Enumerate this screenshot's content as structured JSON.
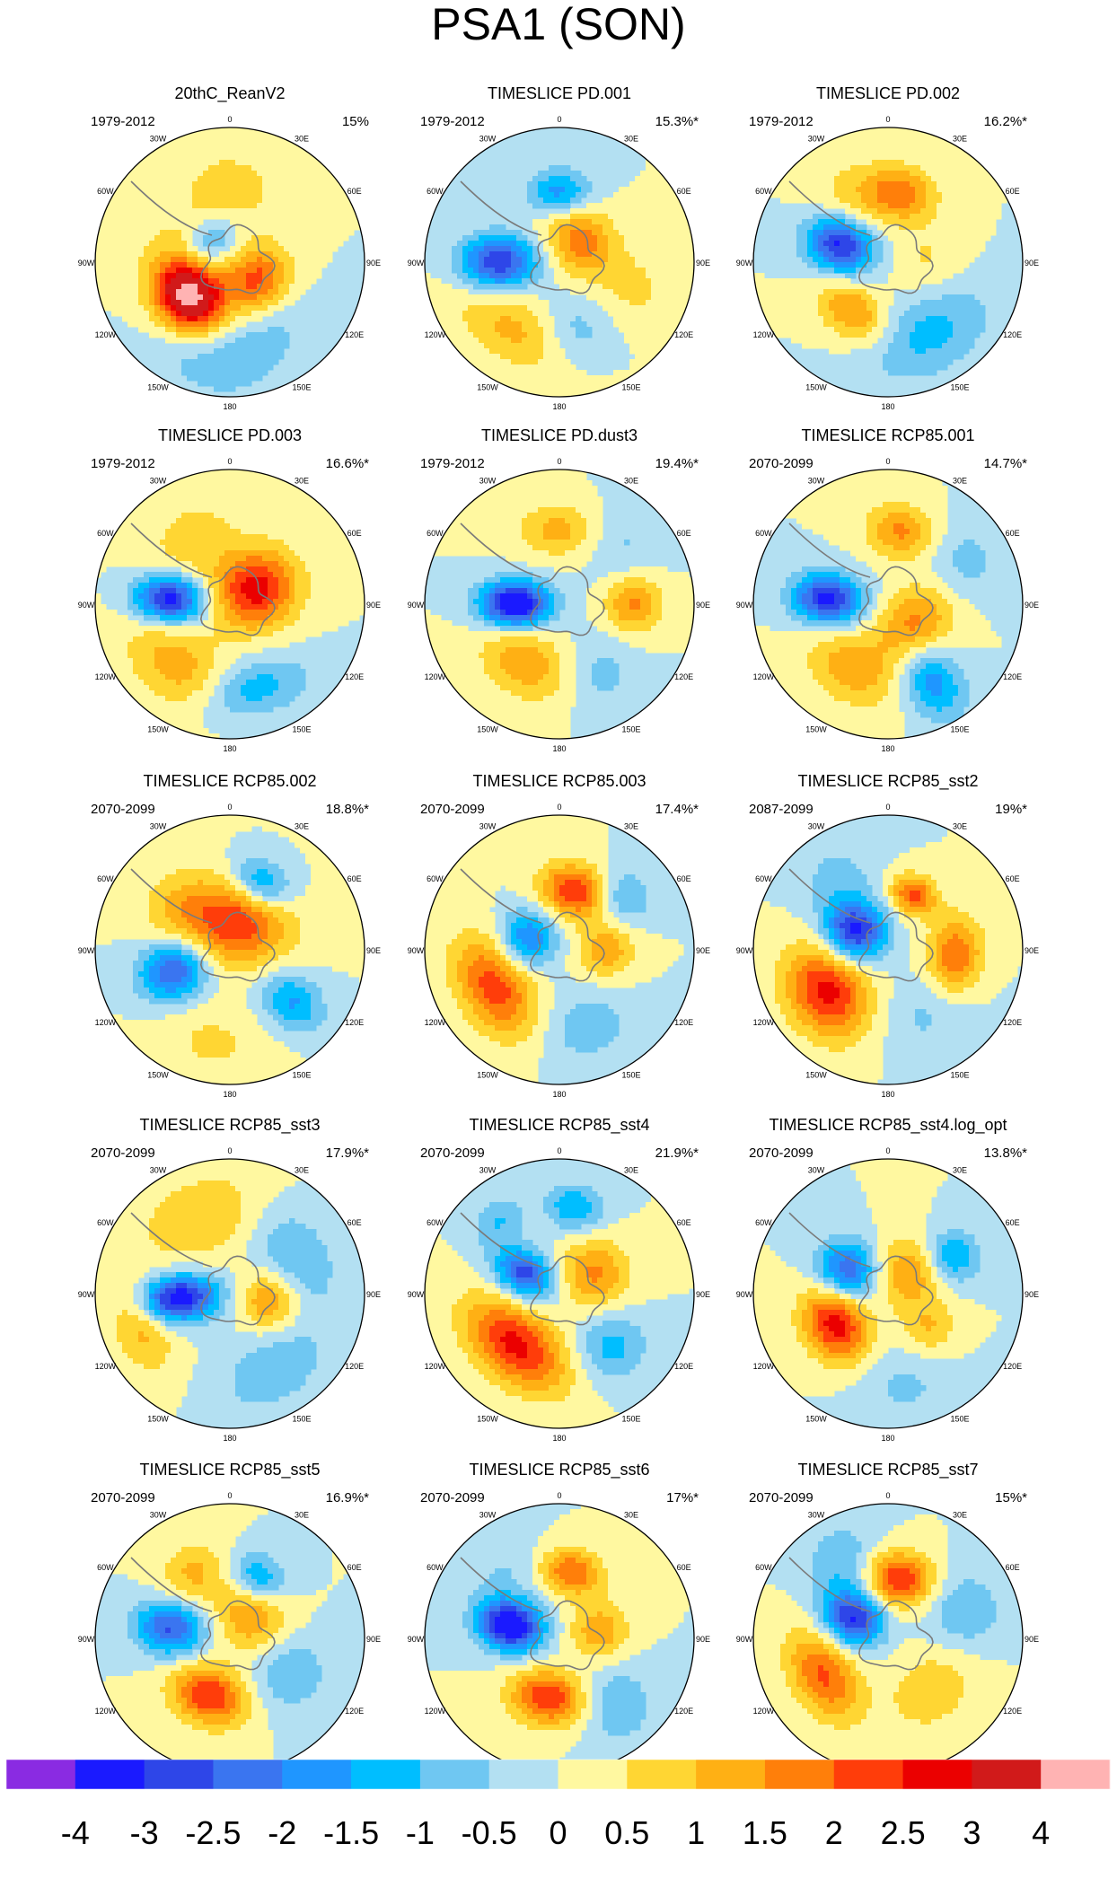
{
  "figure": {
    "title": "PSA1 (SON)",
    "background": "#ffffff"
  },
  "longitude_labels": [
    "0",
    "30E",
    "60E",
    "90E",
    "120E",
    "150E",
    "180",
    "150W",
    "120W",
    "90W",
    "60W",
    "30W"
  ],
  "panels": [
    {
      "title": "20thC_ReanV2",
      "period": "1979-2012",
      "variance": "15%",
      "pattern": [
        {
          "lon": -130,
          "r": 0.4,
          "a": 3.5,
          "sx": 0.18,
          "sy": 0.15
        },
        {
          "lon": -115,
          "r": 0.3,
          "a": 1.2,
          "sx": 0.3,
          "sy": 0.25
        },
        {
          "lon": 120,
          "r": 0.25,
          "a": 2.0,
          "sx": 0.18,
          "sy": 0.15
        },
        {
          "lon": -45,
          "r": 0.2,
          "a": -1.5,
          "sx": 0.15,
          "sy": 0.12
        },
        {
          "lon": 0,
          "r": 0.55,
          "a": 0.8,
          "sx": 0.25,
          "sy": 0.2
        },
        {
          "lon": -165,
          "r": 0.78,
          "a": -0.6,
          "sx": 0.35,
          "sy": 0.2
        },
        {
          "lon": 160,
          "r": 0.6,
          "a": -0.7,
          "sx": 0.3,
          "sy": 0.2
        }
      ]
    },
    {
      "title": "TIMESLICE PD.001",
      "period": "1979-2012",
      "variance": "15.3%*",
      "pattern": [
        {
          "lon": -90,
          "r": 0.45,
          "a": -3.0,
          "sx": 0.14,
          "sy": 0.2
        },
        {
          "lon": 0,
          "r": 0.52,
          "a": -1.8,
          "sx": 0.16,
          "sy": 0.12
        },
        {
          "lon": 45,
          "r": 0.22,
          "a": 1.8,
          "sx": 0.2,
          "sy": 0.17
        },
        {
          "lon": -150,
          "r": 0.6,
          "a": 1.2,
          "sx": 0.35,
          "sy": 0.18
        },
        {
          "lon": 170,
          "r": 0.55,
          "a": -0.9,
          "sx": 0.2,
          "sy": 0.2
        },
        {
          "lon": 110,
          "r": 0.6,
          "a": 0.6,
          "sx": 0.2,
          "sy": 0.2
        }
      ]
    },
    {
      "title": "TIMESLICE PD.002",
      "period": "1979-2012",
      "variance": "16.2%*",
      "pattern": [
        {
          "lon": -70,
          "r": 0.38,
          "a": -3.2,
          "sx": 0.14,
          "sy": 0.18
        },
        {
          "lon": 10,
          "r": 0.52,
          "a": 1.8,
          "sx": 0.18,
          "sy": 0.14
        },
        {
          "lon": -145,
          "r": 0.45,
          "a": 1.6,
          "sx": 0.2,
          "sy": 0.14
        },
        {
          "lon": 150,
          "r": 0.6,
          "a": -1.2,
          "sx": 0.35,
          "sy": 0.22
        },
        {
          "lon": 90,
          "r": 0.3,
          "a": 0.6,
          "sx": 0.2,
          "sy": 0.2
        },
        {
          "lon": -30,
          "r": 0.55,
          "a": 0.7,
          "sx": 0.2,
          "sy": 0.2
        }
      ]
    },
    {
      "title": "TIMESLICE PD.003",
      "period": "1979-2012",
      "variance": "16.6%*",
      "pattern": [
        {
          "lon": -85,
          "r": 0.45,
          "a": -3.4,
          "sx": 0.12,
          "sy": 0.18
        },
        {
          "lon": 60,
          "r": 0.22,
          "a": 2.8,
          "sx": 0.2,
          "sy": 0.22
        },
        {
          "lon": -140,
          "r": 0.6,
          "a": 1.3,
          "sx": 0.3,
          "sy": 0.2
        },
        {
          "lon": 165,
          "r": 0.65,
          "a": -1.3,
          "sx": 0.3,
          "sy": 0.15
        },
        {
          "lon": -30,
          "r": 0.55,
          "a": 0.8,
          "sx": 0.25,
          "sy": 0.2
        }
      ]
    },
    {
      "title": "TIMESLICE PD.dust3",
      "period": "1979-2012",
      "variance": "19.4%*",
      "pattern": [
        {
          "lon": -90,
          "r": 0.33,
          "a": -4.0,
          "sx": 0.12,
          "sy": 0.18
        },
        {
          "lon": 0,
          "r": 0.55,
          "a": 1.2,
          "sx": 0.22,
          "sy": 0.14
        },
        {
          "lon": 90,
          "r": 0.55,
          "a": 1.6,
          "sx": 0.15,
          "sy": 0.15
        },
        {
          "lon": -150,
          "r": 0.5,
          "a": 1.4,
          "sx": 0.25,
          "sy": 0.18
        },
        {
          "lon": 45,
          "r": 0.65,
          "a": -0.6,
          "sx": 0.2,
          "sy": 0.2
        },
        {
          "lon": 150,
          "r": 0.6,
          "a": -0.7,
          "sx": 0.2,
          "sy": 0.2
        }
      ]
    },
    {
      "title": "TIMESLICE RCP85.001",
      "period": "2070-2099",
      "variance": "14.7%*",
      "pattern": [
        {
          "lon": -85,
          "r": 0.45,
          "a": -3.3,
          "sx": 0.13,
          "sy": 0.18
        },
        {
          "lon": 10,
          "r": 0.55,
          "a": 1.6,
          "sx": 0.18,
          "sy": 0.14
        },
        {
          "lon": 130,
          "r": 0.25,
          "a": 1.8,
          "sx": 0.22,
          "sy": 0.18
        },
        {
          "lon": 150,
          "r": 0.65,
          "a": -1.8,
          "sx": 0.15,
          "sy": 0.22
        },
        {
          "lon": -150,
          "r": 0.55,
          "a": 1.3,
          "sx": 0.25,
          "sy": 0.18
        },
        {
          "lon": 60,
          "r": 0.65,
          "a": -0.7,
          "sx": 0.2,
          "sy": 0.2
        }
      ]
    },
    {
      "title": "TIMESLICE RCP85.002",
      "period": "2070-2099",
      "variance": "18.8%*",
      "pattern": [
        {
          "lon": -110,
          "r": 0.45,
          "a": -2.6,
          "sx": 0.15,
          "sy": 0.18
        },
        {
          "lon": 10,
          "r": 0.2,
          "a": 2.4,
          "sx": 0.28,
          "sy": 0.22
        },
        {
          "lon": 25,
          "r": 0.55,
          "a": -1.8,
          "sx": 0.16,
          "sy": 0.12
        },
        {
          "lon": 130,
          "r": 0.6,
          "a": -1.6,
          "sx": 0.14,
          "sy": 0.18
        },
        {
          "lon": -50,
          "r": 0.5,
          "a": 0.7,
          "sx": 0.2,
          "sy": 0.2
        },
        {
          "lon": -170,
          "r": 0.7,
          "a": 0.6,
          "sx": 0.3,
          "sy": 0.2
        }
      ]
    },
    {
      "title": "TIMESLICE RCP85.003",
      "period": "2070-2099",
      "variance": "17.4%*",
      "pattern": [
        {
          "lon": -120,
          "r": 0.55,
          "a": 2.3,
          "sx": 0.28,
          "sy": 0.18
        },
        {
          "lon": 15,
          "r": 0.45,
          "a": 2.5,
          "sx": 0.18,
          "sy": 0.14
        },
        {
          "lon": -70,
          "r": 0.25,
          "a": -2.0,
          "sx": 0.15,
          "sy": 0.15
        },
        {
          "lon": 90,
          "r": 0.35,
          "a": 1.4,
          "sx": 0.15,
          "sy": 0.15
        },
        {
          "lon": 50,
          "r": 0.6,
          "a": -1.2,
          "sx": 0.15,
          "sy": 0.15
        },
        {
          "lon": 160,
          "r": 0.6,
          "a": -0.8,
          "sx": 0.25,
          "sy": 0.2
        }
      ]
    },
    {
      "title": "TIMESLICE RCP85_sst2",
      "period": "2087-2099",
      "variance": "19%*",
      "pattern": [
        {
          "lon": -60,
          "r": 0.28,
          "a": -3.2,
          "sx": 0.15,
          "sy": 0.16
        },
        {
          "lon": -125,
          "r": 0.55,
          "a": 2.7,
          "sx": 0.25,
          "sy": 0.2
        },
        {
          "lon": 95,
          "r": 0.5,
          "a": 2.0,
          "sx": 0.2,
          "sy": 0.14
        },
        {
          "lon": 25,
          "r": 0.45,
          "a": 2.2,
          "sx": 0.12,
          "sy": 0.1
        },
        {
          "lon": -35,
          "r": 0.65,
          "a": -0.7,
          "sx": 0.2,
          "sy": 0.2
        },
        {
          "lon": 150,
          "r": 0.55,
          "a": -0.6,
          "sx": 0.25,
          "sy": 0.2
        }
      ]
    },
    {
      "title": "TIMESLICE RCP85_sst3",
      "period": "2070-2099",
      "variance": "17.9%*",
      "pattern": [
        {
          "lon": -95,
          "r": 0.38,
          "a": -3.6,
          "sx": 0.12,
          "sy": 0.2
        },
        {
          "lon": 100,
          "r": 0.3,
          "a": 1.6,
          "sx": 0.15,
          "sy": 0.15
        },
        {
          "lon": -20,
          "r": 0.6,
          "a": 1.0,
          "sx": 0.35,
          "sy": 0.22
        },
        {
          "lon": -110,
          "r": 0.7,
          "a": 1.2,
          "sx": 0.25,
          "sy": 0.15
        },
        {
          "lon": 60,
          "r": 0.55,
          "a": -1.0,
          "sx": 0.3,
          "sy": 0.2
        },
        {
          "lon": 150,
          "r": 0.65,
          "a": -0.9,
          "sx": 0.3,
          "sy": 0.2
        }
      ]
    },
    {
      "title": "TIMESLICE RCP85_sst4",
      "period": "2070-2099",
      "variance": "21.9%*",
      "pattern": [
        {
          "lon": -60,
          "r": 0.3,
          "a": -2.8,
          "sx": 0.12,
          "sy": 0.16
        },
        {
          "lon": -140,
          "r": 0.5,
          "a": 2.7,
          "sx": 0.3,
          "sy": 0.18
        },
        {
          "lon": 60,
          "r": 0.3,
          "a": 1.6,
          "sx": 0.18,
          "sy": 0.18
        },
        {
          "lon": 10,
          "r": 0.65,
          "a": -1.5,
          "sx": 0.15,
          "sy": 0.12
        },
        {
          "lon": -40,
          "r": 0.7,
          "a": -1.0,
          "sx": 0.15,
          "sy": 0.12
        },
        {
          "lon": 135,
          "r": 0.55,
          "a": -1.2,
          "sx": 0.18,
          "sy": 0.18
        }
      ]
    },
    {
      "title": "TIMESLICE RCP85_sst4.log_opt",
      "period": "2070-2099",
      "variance": "13.8%*",
      "pattern": [
        {
          "lon": -60,
          "r": 0.35,
          "a": -2.5,
          "sx": 0.15,
          "sy": 0.16
        },
        {
          "lon": -120,
          "r": 0.45,
          "a": 2.8,
          "sx": 0.2,
          "sy": 0.16
        },
        {
          "lon": 45,
          "r": 0.22,
          "a": 1.5,
          "sx": 0.18,
          "sy": 0.18
        },
        {
          "lon": 60,
          "r": 0.55,
          "a": -1.6,
          "sx": 0.14,
          "sy": 0.14
        },
        {
          "lon": 130,
          "r": 0.4,
          "a": 1.0,
          "sx": 0.14,
          "sy": 0.14
        },
        {
          "lon": 170,
          "r": 0.7,
          "a": -0.6,
          "sx": 0.25,
          "sy": 0.2
        }
      ]
    },
    {
      "title": "TIMESLICE RCP85_sst5",
      "period": "2070-2099",
      "variance": "16.9%*",
      "pattern": [
        {
          "lon": -80,
          "r": 0.45,
          "a": -2.6,
          "sx": 0.14,
          "sy": 0.18
        },
        {
          "lon": -160,
          "r": 0.45,
          "a": 2.5,
          "sx": 0.2,
          "sy": 0.15
        },
        {
          "lon": 25,
          "r": 0.5,
          "a": -1.6,
          "sx": 0.15,
          "sy": 0.12
        },
        {
          "lon": 45,
          "r": 0.22,
          "a": 1.5,
          "sx": 0.2,
          "sy": 0.18
        },
        {
          "lon": 120,
          "r": 0.5,
          "a": -1.0,
          "sx": 0.2,
          "sy": 0.2
        },
        {
          "lon": -30,
          "r": 0.55,
          "a": 1.1,
          "sx": 0.18,
          "sy": 0.16
        }
      ]
    },
    {
      "title": "TIMESLICE RCP85_sst6",
      "period": "2070-2099",
      "variance": "17%*",
      "pattern": [
        {
          "lon": -75,
          "r": 0.38,
          "a": -3.8,
          "sx": 0.13,
          "sy": 0.17
        },
        {
          "lon": -170,
          "r": 0.45,
          "a": 2.5,
          "sx": 0.2,
          "sy": 0.14
        },
        {
          "lon": 10,
          "r": 0.5,
          "a": 2.0,
          "sx": 0.16,
          "sy": 0.12
        },
        {
          "lon": 80,
          "r": 0.3,
          "a": 1.4,
          "sx": 0.15,
          "sy": 0.15
        },
        {
          "lon": 140,
          "r": 0.65,
          "a": -1.0,
          "sx": 0.2,
          "sy": 0.2
        },
        {
          "lon": -40,
          "r": 0.65,
          "a": -0.5,
          "sx": 0.2,
          "sy": 0.2
        }
      ]
    },
    {
      "title": "TIMESLICE RCP85_sst7",
      "period": "2070-2099",
      "variance": "15%*",
      "pattern": [
        {
          "lon": -60,
          "r": 0.3,
          "a": -3.0,
          "sx": 0.14,
          "sy": 0.16
        },
        {
          "lon": 10,
          "r": 0.45,
          "a": 2.6,
          "sx": 0.18,
          "sy": 0.14
        },
        {
          "lon": -120,
          "r": 0.55,
          "a": 2.1,
          "sx": 0.25,
          "sy": 0.16
        },
        {
          "lon": 140,
          "r": 0.5,
          "a": 0.9,
          "sx": 0.25,
          "sy": 0.2
        },
        {
          "lon": -30,
          "r": 0.65,
          "a": -1.0,
          "sx": 0.2,
          "sy": 0.2
        },
        {
          "lon": 70,
          "r": 0.6,
          "a": -1.0,
          "sx": 0.2,
          "sy": 0.2
        }
      ]
    }
  ],
  "colorbar": {
    "colors": [
      "#8a2be2",
      "#1a1aff",
      "#2e46e8",
      "#3a75f0",
      "#1f96ff",
      "#00beff",
      "#6fc7f2",
      "#b3e0f2",
      "#fff8a0",
      "#ffd633",
      "#ffb014",
      "#ff7f0a",
      "#ff3d0a",
      "#eb0000",
      "#d11a1a",
      "#ffb3b3"
    ],
    "labels": [
      "-4",
      "-3",
      "-2.5",
      "-2",
      "-1.5",
      "-1",
      "-0.5",
      "0",
      "0.5",
      "1",
      "1.5",
      "2",
      "2.5",
      "3",
      "4"
    ]
  }
}
